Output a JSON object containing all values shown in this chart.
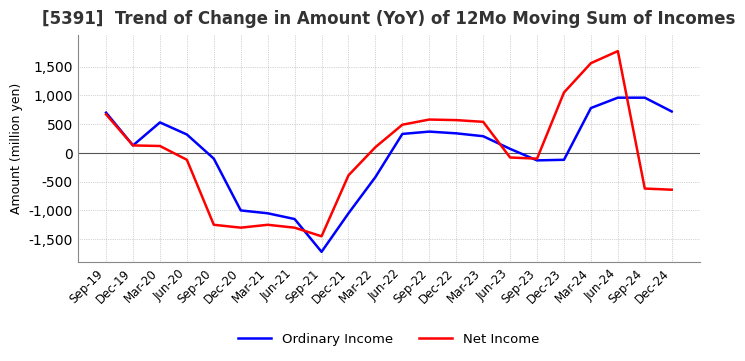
{
  "title": "[5391]  Trend of Change in Amount (YoY) of 12Mo Moving Sum of Incomes",
  "ylabel": "Amount (million yen)",
  "ylim": [
    -1900,
    2050
  ],
  "yticks": [
    -1500,
    -1000,
    -500,
    0,
    500,
    1000,
    1500
  ],
  "legend_labels": [
    "Ordinary Income",
    "Net Income"
  ],
  "line_colors": [
    "blue",
    "red"
  ],
  "x_labels": [
    "Sep-19",
    "Dec-19",
    "Mar-20",
    "Jun-20",
    "Sep-20",
    "Dec-20",
    "Mar-21",
    "Jun-21",
    "Sep-21",
    "Dec-21",
    "Mar-22",
    "Jun-22",
    "Sep-22",
    "Dec-22",
    "Mar-23",
    "Jun-23",
    "Sep-23",
    "Dec-23",
    "Mar-24",
    "Jun-24",
    "Sep-24",
    "Dec-24"
  ],
  "ordinary_income": [
    700,
    130,
    530,
    320,
    -100,
    -1000,
    -1050,
    -1150,
    -1720,
    -1050,
    -420,
    330,
    370,
    340,
    290,
    70,
    -130,
    -120,
    780,
    960,
    960,
    720
  ],
  "net_income": [
    670,
    130,
    120,
    -120,
    -1250,
    -1300,
    -1250,
    -1300,
    -1450,
    -390,
    100,
    490,
    580,
    570,
    540,
    -80,
    -100,
    1050,
    1560,
    1770,
    -620,
    -640
  ],
  "background_color": "#ffffff",
  "plot_bg_color": "#ffffff",
  "grid_color": "#aaaaaa",
  "title_fontsize": 12,
  "label_fontsize": 9,
  "tick_fontsize": 8.5
}
